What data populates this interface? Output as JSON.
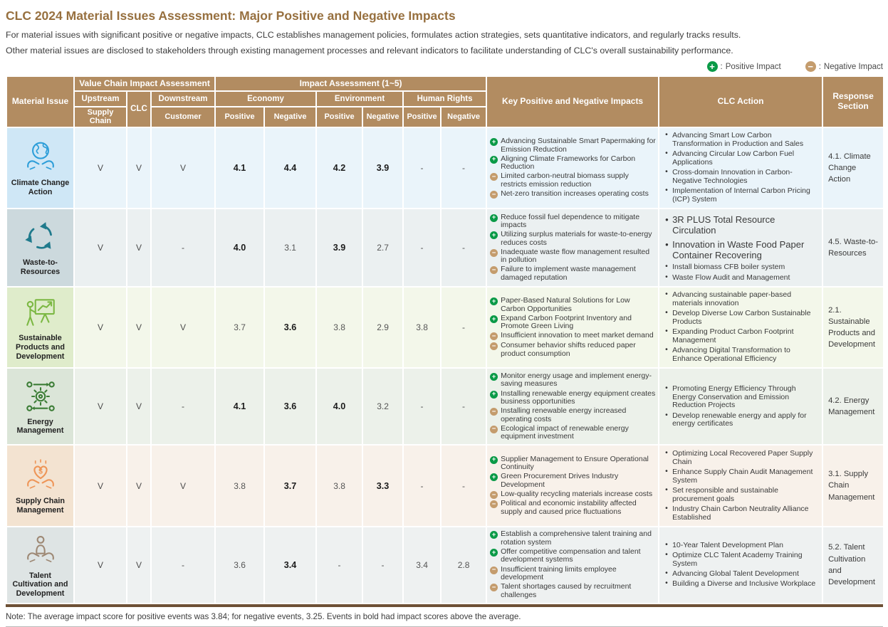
{
  "page": {
    "title": "CLC 2024 Material Issues Assessment: Major Positive and Negative Impacts",
    "intro_line1": "For material issues with significant positive or negative impacts, CLC establishes management policies, formulates action strategies, sets quantitative indicators, and regularly tracks results.",
    "intro_line2": "Other material issues are disclosed to stakeholders through existing management processes and relevant indicators to facilitate understanding of CLC's overall sustainability performance.",
    "note": "Note: The average impact score for positive events was 3.84; for negative events, 3.25. Events in bold had impact scores above the average."
  },
  "legend": {
    "positive_label": "Positive Impact",
    "negative_label": "Negative Impact"
  },
  "colors": {
    "header_bg": "#b28c61",
    "positive_icon": "#0a9a47",
    "negative_icon": "#c49c6d",
    "title_text": "#97703f",
    "table_bottom_border": "#6e5136"
  },
  "table": {
    "headers": {
      "material_issue": "Material Issue",
      "value_chain": "Value Chain Impact Assessment",
      "upstream": "Upstream",
      "supply_chain": "Supply Chain",
      "clc": "CLC",
      "downstream": "Downstream",
      "customer": "Customer",
      "impact_assessment": "Impact Assessment (1~5)",
      "economy": "Economy",
      "environment": "Environment",
      "human_rights": "Human Rights",
      "positive": "Positive",
      "negative": "Negative",
      "key_impacts": "Key Positive and Negative Impacts",
      "clc_action": "CLC Action",
      "response_section": "Response Section"
    },
    "rows": [
      {
        "issue": "Climate Change Action",
        "icon": "globe-hands-icon",
        "icon_color": "#2d9ed9",
        "icon_bg": "#cfe7f6",
        "row_bg": "#eaf4fa",
        "upstream": "V",
        "clc": "V",
        "downstream": "V",
        "scores": [
          {
            "value": "4.1",
            "bold": true
          },
          {
            "value": "4.4",
            "bold": true
          },
          {
            "value": "4.2",
            "bold": true
          },
          {
            "value": "3.9",
            "bold": true
          },
          {
            "value": "-",
            "bold": false
          },
          {
            "value": "-",
            "bold": false
          }
        ],
        "impacts": [
          {
            "type": "positive",
            "text": "Advancing Sustainable Smart Papermaking for Emission Reduction"
          },
          {
            "type": "positive",
            "text": "Aligning Climate Frameworks for Carbon Reduction"
          },
          {
            "type": "negative",
            "text": "Limited carbon-neutral biomass supply restricts emission reduction"
          },
          {
            "type": "negative",
            "text": "Net-zero transition increases operating costs"
          }
        ],
        "actions": [
          {
            "text": "Advancing Smart Low Carbon Transformation in Production and Sales",
            "large": false
          },
          {
            "text": "Advancing Circular Low Carbon Fuel Applications",
            "large": false
          },
          {
            "text": "Cross-domain Innovation in Carbon-Negative Technologies",
            "large": false
          },
          {
            "text": "Implementation of Internal Carbon Pricing (ICP) System",
            "large": false
          }
        ],
        "response": "4.1. Climate Change Action"
      },
      {
        "issue": "Waste-to-Resources",
        "icon": "recycle-icon",
        "icon_color": "#1f7a8c",
        "icon_bg": "#ccd9dd",
        "row_bg": "#ebf0f1",
        "upstream": "V",
        "clc": "V",
        "downstream": "-",
        "scores": [
          {
            "value": "4.0",
            "bold": true
          },
          {
            "value": "3.1",
            "bold": false
          },
          {
            "value": "3.9",
            "bold": true
          },
          {
            "value": "2.7",
            "bold": false
          },
          {
            "value": "-",
            "bold": false
          },
          {
            "value": "-",
            "bold": false
          }
        ],
        "impacts": [
          {
            "type": "positive",
            "text": "Reduce fossil fuel dependence to mitigate impacts"
          },
          {
            "type": "positive",
            "text": "Utilizing surplus materials for waste-to-energy reduces costs"
          },
          {
            "type": "negative",
            "text": "Inadequate waste flow management resulted in pollution"
          },
          {
            "type": "negative",
            "text": "Failure to implement waste management damaged reputation"
          }
        ],
        "actions": [
          {
            "text": "3R PLUS Total Resource Circulation",
            "large": true
          },
          {
            "text": "Innovation in Waste Food Paper Container Recovering",
            "large": true
          },
          {
            "text": "Install biomass CFB boiler system",
            "large": false
          },
          {
            "text": "Waste Flow Audit and Management",
            "large": false
          }
        ],
        "response": "4.5. Waste-to-Resources"
      },
      {
        "issue": "Sustainable Products and Development",
        "icon": "presentation-growth-icon",
        "icon_color": "#7cb843",
        "icon_bg": "#dfeccb",
        "row_bg": "#f3f7ea",
        "upstream": "V",
        "clc": "V",
        "downstream": "V",
        "scores": [
          {
            "value": "3.7",
            "bold": false
          },
          {
            "value": "3.6",
            "bold": true
          },
          {
            "value": "3.8",
            "bold": false
          },
          {
            "value": "2.9",
            "bold": false
          },
          {
            "value": "3.8",
            "bold": false
          },
          {
            "value": "-",
            "bold": false
          }
        ],
        "impacts": [
          {
            "type": "positive",
            "text": "Paper-Based Natural Solutions for Low Carbon Opportunities"
          },
          {
            "type": "positive",
            "text": "Expand Carbon Footprint Inventory and Promote Green Living"
          },
          {
            "type": "negative",
            "text": "Insufficient innovation to meet market demand"
          },
          {
            "type": "negative",
            "text": "Consumer behavior shifts reduced paper product consumption"
          }
        ],
        "actions": [
          {
            "text": "Advancing sustainable paper-based materials innovation",
            "large": false
          },
          {
            "text": "Develop Diverse Low Carbon Sustainable Products",
            "large": false
          },
          {
            "text": "Expanding Product Carbon Footprint Management",
            "large": false
          },
          {
            "text": "Advancing Digital Transformation to Enhance Operational Efficiency",
            "large": false
          }
        ],
        "response": "2.1. Sustainable Products and Development"
      },
      {
        "issue": "Energy Management",
        "icon": "energy-gear-icon",
        "icon_color": "#3c7d36",
        "icon_bg": "#dbe5d8",
        "row_bg": "#ecf1ea",
        "upstream": "V",
        "clc": "V",
        "downstream": "-",
        "scores": [
          {
            "value": "4.1",
            "bold": true
          },
          {
            "value": "3.6",
            "bold": true
          },
          {
            "value": "4.0",
            "bold": true
          },
          {
            "value": "3.2",
            "bold": false
          },
          {
            "value": "-",
            "bold": false
          },
          {
            "value": "-",
            "bold": false
          }
        ],
        "impacts": [
          {
            "type": "positive",
            "text": "Monitor energy usage and implement energy-saving measures"
          },
          {
            "type": "positive",
            "text": "Installing renewable energy equipment creates business opportunities"
          },
          {
            "type": "negative",
            "text": "Installing renewable energy increased operating costs"
          },
          {
            "type": "negative",
            "text": "Ecological impact of renewable energy equipment investment"
          }
        ],
        "actions": [
          {
            "text": "Promoting Energy Efficiency Through Energy Conservation and Emission Reduction Projects",
            "large": false
          },
          {
            "text": "Develop renewable energy and apply for energy certificates",
            "large": false
          }
        ],
        "response": "4.2. Energy Management"
      },
      {
        "issue": "Supply Chain Management",
        "icon": "hands-heart-dollar-icon",
        "icon_color": "#ee9557",
        "icon_bg": "#f3e3d1",
        "row_bg": "#f8f1ea",
        "upstream": "V",
        "clc": "V",
        "downstream": "V",
        "scores": [
          {
            "value": "3.8",
            "bold": false
          },
          {
            "value": "3.7",
            "bold": true
          },
          {
            "value": "3.8",
            "bold": false
          },
          {
            "value": "3.3",
            "bold": true
          },
          {
            "value": "-",
            "bold": false
          },
          {
            "value": "-",
            "bold": false
          }
        ],
        "impacts": [
          {
            "type": "positive",
            "text": "Supplier Management to Ensure Operational Continuity"
          },
          {
            "type": "positive",
            "text": "Green Procurement Drives Industry Development"
          },
          {
            "type": "negative",
            "text": "Low-quality recycling materials increase costs"
          },
          {
            "type": "negative",
            "text": "Political and economic instability affected supply and caused price fluctuations"
          }
        ],
        "actions": [
          {
            "text": "Optimizing Local Recovered Paper Supply Chain",
            "large": false
          },
          {
            "text": "Enhance Supply Chain Audit Management System",
            "large": false
          },
          {
            "text": "Set responsible and sustainable procurement goals",
            "large": false
          },
          {
            "text": "Industry Chain Carbon Neutrality Alliance Established",
            "large": false
          }
        ],
        "response": "3.1. Supply Chain Management"
      },
      {
        "issue": "Talent Cultivation and Development",
        "icon": "hands-person-icon",
        "icon_color": "#9d8874",
        "icon_bg": "#dee4e4",
        "row_bg": "#eef1f1",
        "upstream": "V",
        "clc": "V",
        "downstream": "-",
        "scores": [
          {
            "value": "3.6",
            "bold": false
          },
          {
            "value": "3.4",
            "bold": true
          },
          {
            "value": "-",
            "bold": false
          },
          {
            "value": "-",
            "bold": false
          },
          {
            "value": "3.4",
            "bold": false
          },
          {
            "value": "2.8",
            "bold": false
          }
        ],
        "impacts": [
          {
            "type": "positive",
            "text": "Establish a comprehensive talent training and rotation system"
          },
          {
            "type": "positive",
            "text": "Offer competitive compensation and talent development systems"
          },
          {
            "type": "negative",
            "text": "Insufficient training limits employee development"
          },
          {
            "type": "negative",
            "text": "Talent shortages caused by recruitment challenges"
          }
        ],
        "actions": [
          {
            "text": "10-Year Talent Development Plan",
            "large": false
          },
          {
            "text": "Optimize CLC Talent Academy Training System",
            "large": false
          },
          {
            "text": "Advancing Global Talent Development",
            "large": false
          },
          {
            "text": "Building a Diverse and Inclusive Workplace",
            "large": false
          }
        ],
        "response": "5.2. Talent Cultivation and Development"
      }
    ]
  }
}
